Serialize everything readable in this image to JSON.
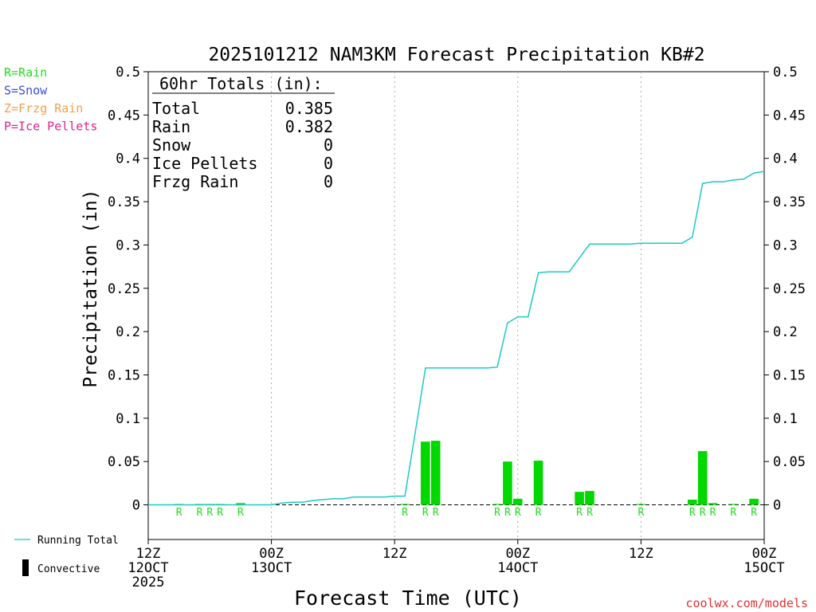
{
  "chart_data": {
    "type": "bar",
    "title": "2025101212 NAM3KM Forecast Precipitation KB#2",
    "xlabel": "Forecast Time (UTC)",
    "ylabel": "Precipitation (in)",
    "ylim": [
      -0.04,
      0.5
    ],
    "xlim": [
      0,
      60
    ],
    "y_ticks": [
      0,
      0.05,
      0.1,
      0.15,
      0.2,
      0.25,
      0.3,
      0.35,
      0.4,
      0.45,
      0.5
    ],
    "y_tick_labels": [
      "0",
      "0.05",
      "0.1",
      "0.15",
      "0.2",
      "0.25",
      "0.3",
      "0.35",
      "0.4",
      "0.45",
      "0.5"
    ],
    "x_ticks": [
      {
        "hour": 0,
        "lines": [
          "12Z",
          "12OCT",
          "2025"
        ]
      },
      {
        "hour": 12,
        "lines": [
          "00Z",
          "13OCT"
        ]
      },
      {
        "hour": 24,
        "lines": [
          "12Z"
        ]
      },
      {
        "hour": 36,
        "lines": [
          "00Z",
          "14OCT"
        ]
      },
      {
        "hour": 48,
        "lines": [
          "12Z"
        ]
      },
      {
        "hour": 60,
        "lines": [
          "00Z",
          "15OCT"
        ]
      }
    ],
    "gridlines_at_hours": [
      12,
      24,
      36,
      48
    ],
    "totals": {
      "heading": "60hr Totals (in):",
      "rows": [
        {
          "label": "Total",
          "value": "0.385"
        },
        {
          "label": "Rain",
          "value": "0.382"
        },
        {
          "label": "Snow",
          "value": "0"
        },
        {
          "label": "Ice Pellets",
          "value": "0"
        },
        {
          "label": "Frzg Rain",
          "value": "0"
        }
      ]
    },
    "type_legend": [
      {
        "text": "R=Rain",
        "color": "#22dd22"
      },
      {
        "text": "S=Snow",
        "color": "#3b4fe0"
      },
      {
        "text": "Z=Frzg Rain",
        "color": "#f0a050"
      },
      {
        "text": "P=Ice Pellets",
        "color": "#e0208a"
      }
    ],
    "series_legend": [
      {
        "text": "Running Total",
        "color": "#1ec8c8",
        "kind": "line"
      },
      {
        "text": "Convective",
        "color": "#000000",
        "kind": "bar"
      }
    ],
    "bars": [
      {
        "hour": 3,
        "value": 0.001,
        "type": "R"
      },
      {
        "hour": 5,
        "value": 0.001,
        "type": "R"
      },
      {
        "hour": 6,
        "value": 0.001,
        "type": "R"
      },
      {
        "hour": 7,
        "value": 0.001,
        "type": "R"
      },
      {
        "hour": 9,
        "value": 0.002,
        "type": "R"
      },
      {
        "hour": 25,
        "value": 0.001,
        "type": "R"
      },
      {
        "hour": 27,
        "value": 0.073,
        "type": "R"
      },
      {
        "hour": 28,
        "value": 0.074,
        "type": "R"
      },
      {
        "hour": 34,
        "value": 0.001,
        "type": "R"
      },
      {
        "hour": 35,
        "value": 0.05,
        "type": "R"
      },
      {
        "hour": 36,
        "value": 0.007,
        "type": "R"
      },
      {
        "hour": 38,
        "value": 0.051,
        "type": "R"
      },
      {
        "hour": 42,
        "value": 0.015,
        "type": "R"
      },
      {
        "hour": 43,
        "value": 0.016,
        "type": "R"
      },
      {
        "hour": 48,
        "value": 0.001,
        "type": "R"
      },
      {
        "hour": 53,
        "value": 0.006,
        "type": "R"
      },
      {
        "hour": 54,
        "value": 0.062,
        "type": "R"
      },
      {
        "hour": 55,
        "value": 0.002,
        "type": "R"
      },
      {
        "hour": 57,
        "value": 0.001,
        "type": "R"
      },
      {
        "hour": 59,
        "value": 0.007,
        "type": "R"
      }
    ],
    "running_total": {
      "x": [
        0,
        12,
        13,
        14,
        15,
        16,
        17,
        18,
        19,
        20,
        21,
        22,
        23,
        24,
        25,
        26,
        27,
        28,
        29,
        30,
        31,
        32,
        33,
        34,
        35,
        36,
        37,
        38,
        39,
        40,
        41,
        42,
        43,
        44,
        45,
        46,
        47,
        48,
        49,
        50,
        51,
        52,
        53,
        54,
        55,
        56,
        57,
        58,
        59,
        60
      ],
      "y": [
        0,
        0,
        0.002,
        0.003,
        0.003,
        0.005,
        0.006,
        0.007,
        0.007,
        0.009,
        0.009,
        0.009,
        0.009,
        0.01,
        0.01,
        0.083,
        0.158,
        0.158,
        0.158,
        0.158,
        0.158,
        0.158,
        0.158,
        0.159,
        0.21,
        0.217,
        0.217,
        0.268,
        0.269,
        0.269,
        0.269,
        0.285,
        0.301,
        0.301,
        0.301,
        0.301,
        0.301,
        0.302,
        0.302,
        0.302,
        0.302,
        0.302,
        0.309,
        0.371,
        0.373,
        0.373,
        0.375,
        0.376,
        0.383,
        0.385
      ]
    },
    "colors": {
      "bar": "#00d800",
      "line": "#1ec8c8",
      "rain_label": "#22dd22",
      "watermark": "#e03030"
    }
  },
  "watermark": "coolwx.com/models"
}
